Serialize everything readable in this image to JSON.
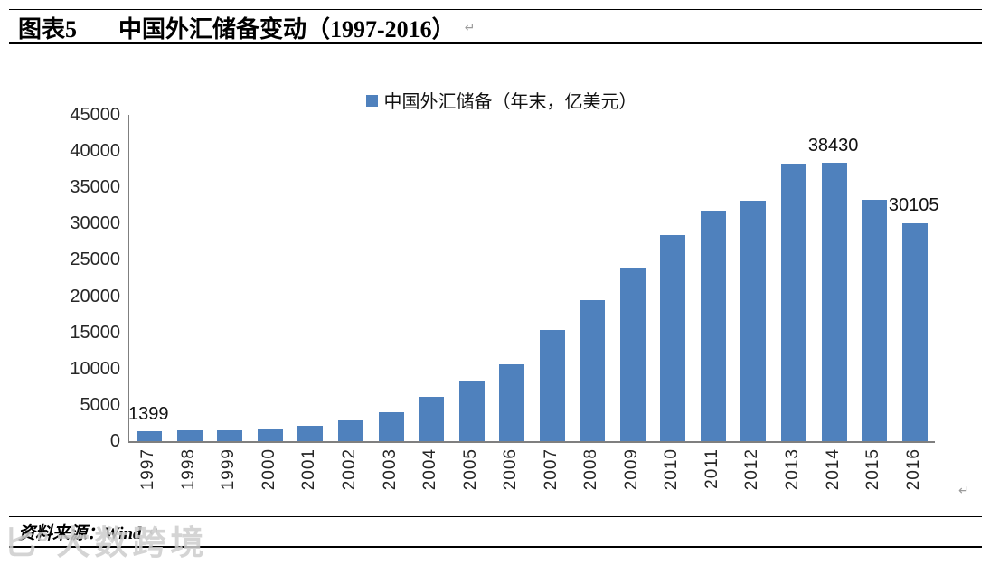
{
  "header": {
    "figure_label": "图表5",
    "title": "中国外汇储备变动（1997-2016）"
  },
  "legend": {
    "label": "中国外汇储备（年末，亿美元）",
    "marker_color": "#4f81bd"
  },
  "chart_data": {
    "type": "bar",
    "title": "中国外汇储备变动（1997-2016）",
    "legend_entries": [
      "中国外汇储备（年末，亿美元）"
    ],
    "legend_position": "top",
    "grid": false,
    "xlabel": "",
    "ylabel": "",
    "ylim": [
      0,
      45000
    ],
    "yticks": [
      0,
      5000,
      10000,
      15000,
      20000,
      25000,
      30000,
      35000,
      40000,
      45000
    ],
    "bar_color": "#4f81bd",
    "axis_color": "#7f7f7f",
    "categories": [
      "1997",
      "1998",
      "1999",
      "2000",
      "2001",
      "2002",
      "2003",
      "2004",
      "2005",
      "2006",
      "2007",
      "2008",
      "2009",
      "2010",
      "2011",
      "2012",
      "2013",
      "2014",
      "2015",
      "2016"
    ],
    "series": [
      {
        "name": "中国外汇储备（年末，亿美元）",
        "values": [
          1399,
          1450,
          1547,
          1656,
          2122,
          2864,
          4033,
          6099,
          8189,
          10663,
          15282,
          19460,
          23992,
          28473,
          31811,
          33116,
          38213,
          38430,
          33304,
          30105
        ]
      }
    ],
    "annotations": [
      {
        "category": "1997",
        "text": "1399"
      },
      {
        "category": "2014",
        "text": "38430"
      },
      {
        "category": "2016",
        "text": "30105"
      }
    ]
  },
  "footer": {
    "source": "资料来源：Wind"
  },
  "watermark": {
    "logo": "匕°",
    "text": "大数跨境"
  },
  "marks": {
    "return": "↵"
  }
}
